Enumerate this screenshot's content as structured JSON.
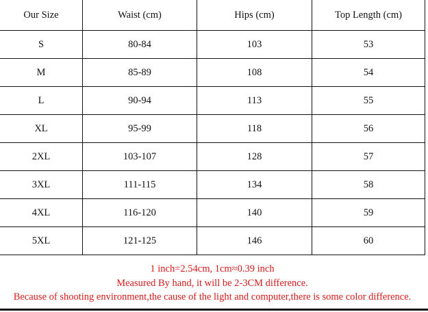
{
  "table": {
    "headers": [
      "Our Size",
      "Waist (cm)",
      "Hips (cm)",
      "Top Length (cm)"
    ],
    "rows": [
      [
        "S",
        "80-84",
        "103",
        "53"
      ],
      [
        "M",
        "85-89",
        "108",
        "54"
      ],
      [
        "L",
        "90-94",
        "113",
        "55"
      ],
      [
        "XL",
        "95-99",
        "118",
        "56"
      ],
      [
        "2XL",
        "103-107",
        "128",
        "57"
      ],
      [
        "3XL",
        "111-115",
        "134",
        "58"
      ],
      [
        "4XL",
        "116-120",
        "140",
        "59"
      ],
      [
        "5XL",
        "121-125",
        "146",
        "60"
      ]
    ]
  },
  "notes": [
    "1 inch=2.54cm, 1cm≈0.39 inch",
    "Measured By hand, it will be 2-3CM difference.",
    "Because of shooting environment,the cause of the light and computer,there is some color difference."
  ],
  "colors": {
    "note_text": "#d71a1a",
    "border": "#111111"
  }
}
